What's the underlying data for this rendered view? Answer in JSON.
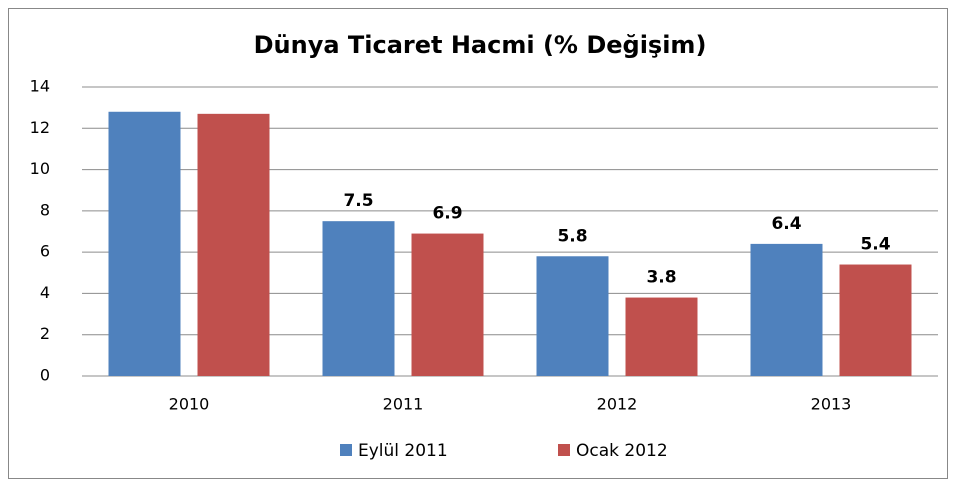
{
  "chart_data": {
    "type": "bar",
    "title": "Dünya Ticaret Hacmi (% Değişim)",
    "categories": [
      "2010",
      "2011",
      "2012",
      "2013"
    ],
    "series": [
      {
        "name": "Eylül 2011",
        "color": "#4f81bd",
        "values": [
          12.8,
          7.5,
          5.8,
          6.4
        ],
        "value_labels": [
          null,
          "7.5",
          "5.8",
          "6.4"
        ]
      },
      {
        "name": "Ocak 2012",
        "color": "#c0504d",
        "values": [
          12.7,
          6.9,
          3.8,
          5.4
        ],
        "value_labels": [
          null,
          "6.9",
          "3.8",
          "5.4"
        ]
      }
    ],
    "ylim": [
      0,
      14
    ],
    "yticks": [
      0,
      2,
      4,
      6,
      8,
      10,
      12,
      14
    ],
    "grid": true,
    "legend": "bottom"
  }
}
